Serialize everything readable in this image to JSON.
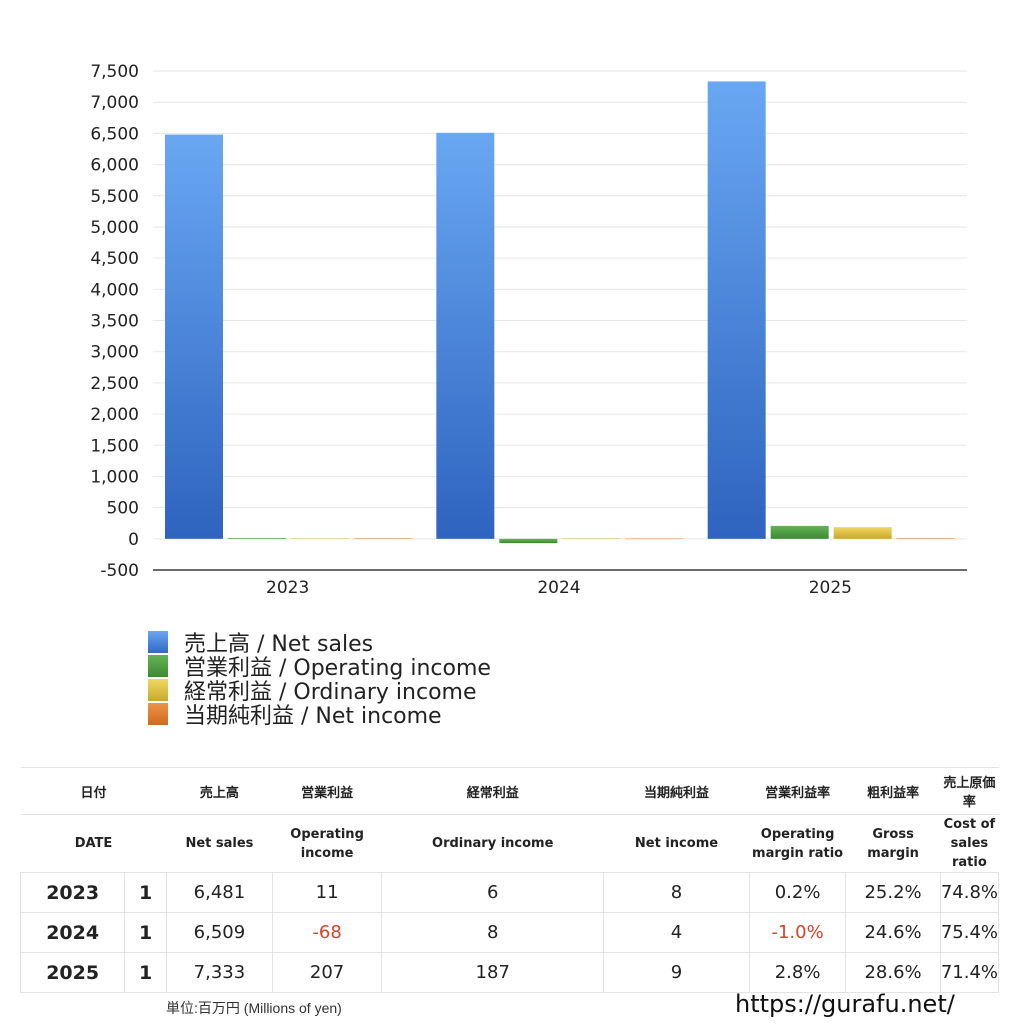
{
  "chart_data": {
    "type": "bar",
    "title": "",
    "xlabel": "",
    "ylabel": "",
    "categories": [
      "2023",
      "2024",
      "2025"
    ],
    "series": [
      {
        "name": "売上高 / Net sales",
        "color": "#4a86e0",
        "values": [
          6481,
          6509,
          7333
        ]
      },
      {
        "name": "営業利益 / Operating income",
        "color": "#4f9e3e",
        "values": [
          11,
          -68,
          207
        ]
      },
      {
        "name": "経常利益 / Ordinary income",
        "color": "#e2c744",
        "values": [
          6,
          8,
          187
        ]
      },
      {
        "name": "当期純利益 / Net income",
        "color": "#e07f31",
        "values": [
          8,
          4,
          9
        ]
      }
    ],
    "ylim": [
      -500,
      7500
    ],
    "yticks": [
      7500,
      7000,
      6500,
      6000,
      5500,
      5000,
      4500,
      4000,
      3500,
      3000,
      2500,
      2000,
      1500,
      1000,
      500,
      0,
      -500
    ],
    "ytick_labels": [
      "7,500",
      "7,000",
      "6,500",
      "6,000",
      "5,500",
      "5,000",
      "4,500",
      "4,000",
      "3,500",
      "3,000",
      "2,500",
      "2,000",
      "1,500",
      "1,000",
      "500",
      "0",
      "-500"
    ],
    "grid": true,
    "legend_position": "bottom-left"
  },
  "legend": [
    {
      "label": "売上高 / Net sales",
      "color_top": "#69a7f2",
      "color_bottom": "#3468c4"
    },
    {
      "label": "営業利益 / Operating income",
      "color_top": "#66b356",
      "color_bottom": "#3c8a32"
    },
    {
      "label": "経常利益 / Ordinary income",
      "color_top": "#efd861",
      "color_bottom": "#c9a92d"
    },
    {
      "label": "当期純利益 / Net income",
      "color_top": "#ee9446",
      "color_bottom": "#cc6a22"
    }
  ],
  "table": {
    "header_jp": [
      "日付",
      "売上高",
      "営業利益",
      "経常利益",
      "当期純利益",
      "営業利益率",
      "粗利益率",
      "売上原価率"
    ],
    "header_en": [
      "DATE",
      "Net sales",
      "Operating income",
      "Ordinary income",
      "Net income",
      "Operating margin ratio",
      "Gross margin",
      "Cost of sales ratio"
    ],
    "rows": [
      {
        "year": "2023",
        "q": "1",
        "net_sales": "6,481",
        "op_income": "11",
        "ord_income": "6",
        "net_income": "8",
        "op_margin": "0.2%",
        "gross_margin": "25.2%",
        "cost_ratio": "74.8%"
      },
      {
        "year": "2024",
        "q": "1",
        "net_sales": "6,509",
        "op_income": "-68",
        "ord_income": "8",
        "net_income": "4",
        "op_margin": "-1.0%",
        "gross_margin": "24.6%",
        "cost_ratio": "75.4%"
      },
      {
        "year": "2025",
        "q": "1",
        "net_sales": "7,333",
        "op_income": "207",
        "ord_income": "187",
        "net_income": "9",
        "op_margin": "2.8%",
        "gross_margin": "28.6%",
        "cost_ratio": "71.4%"
      }
    ]
  },
  "footer": {
    "unit": "単位:百万円 (Millions of yen)",
    "site": "https://gurafu.net/"
  }
}
